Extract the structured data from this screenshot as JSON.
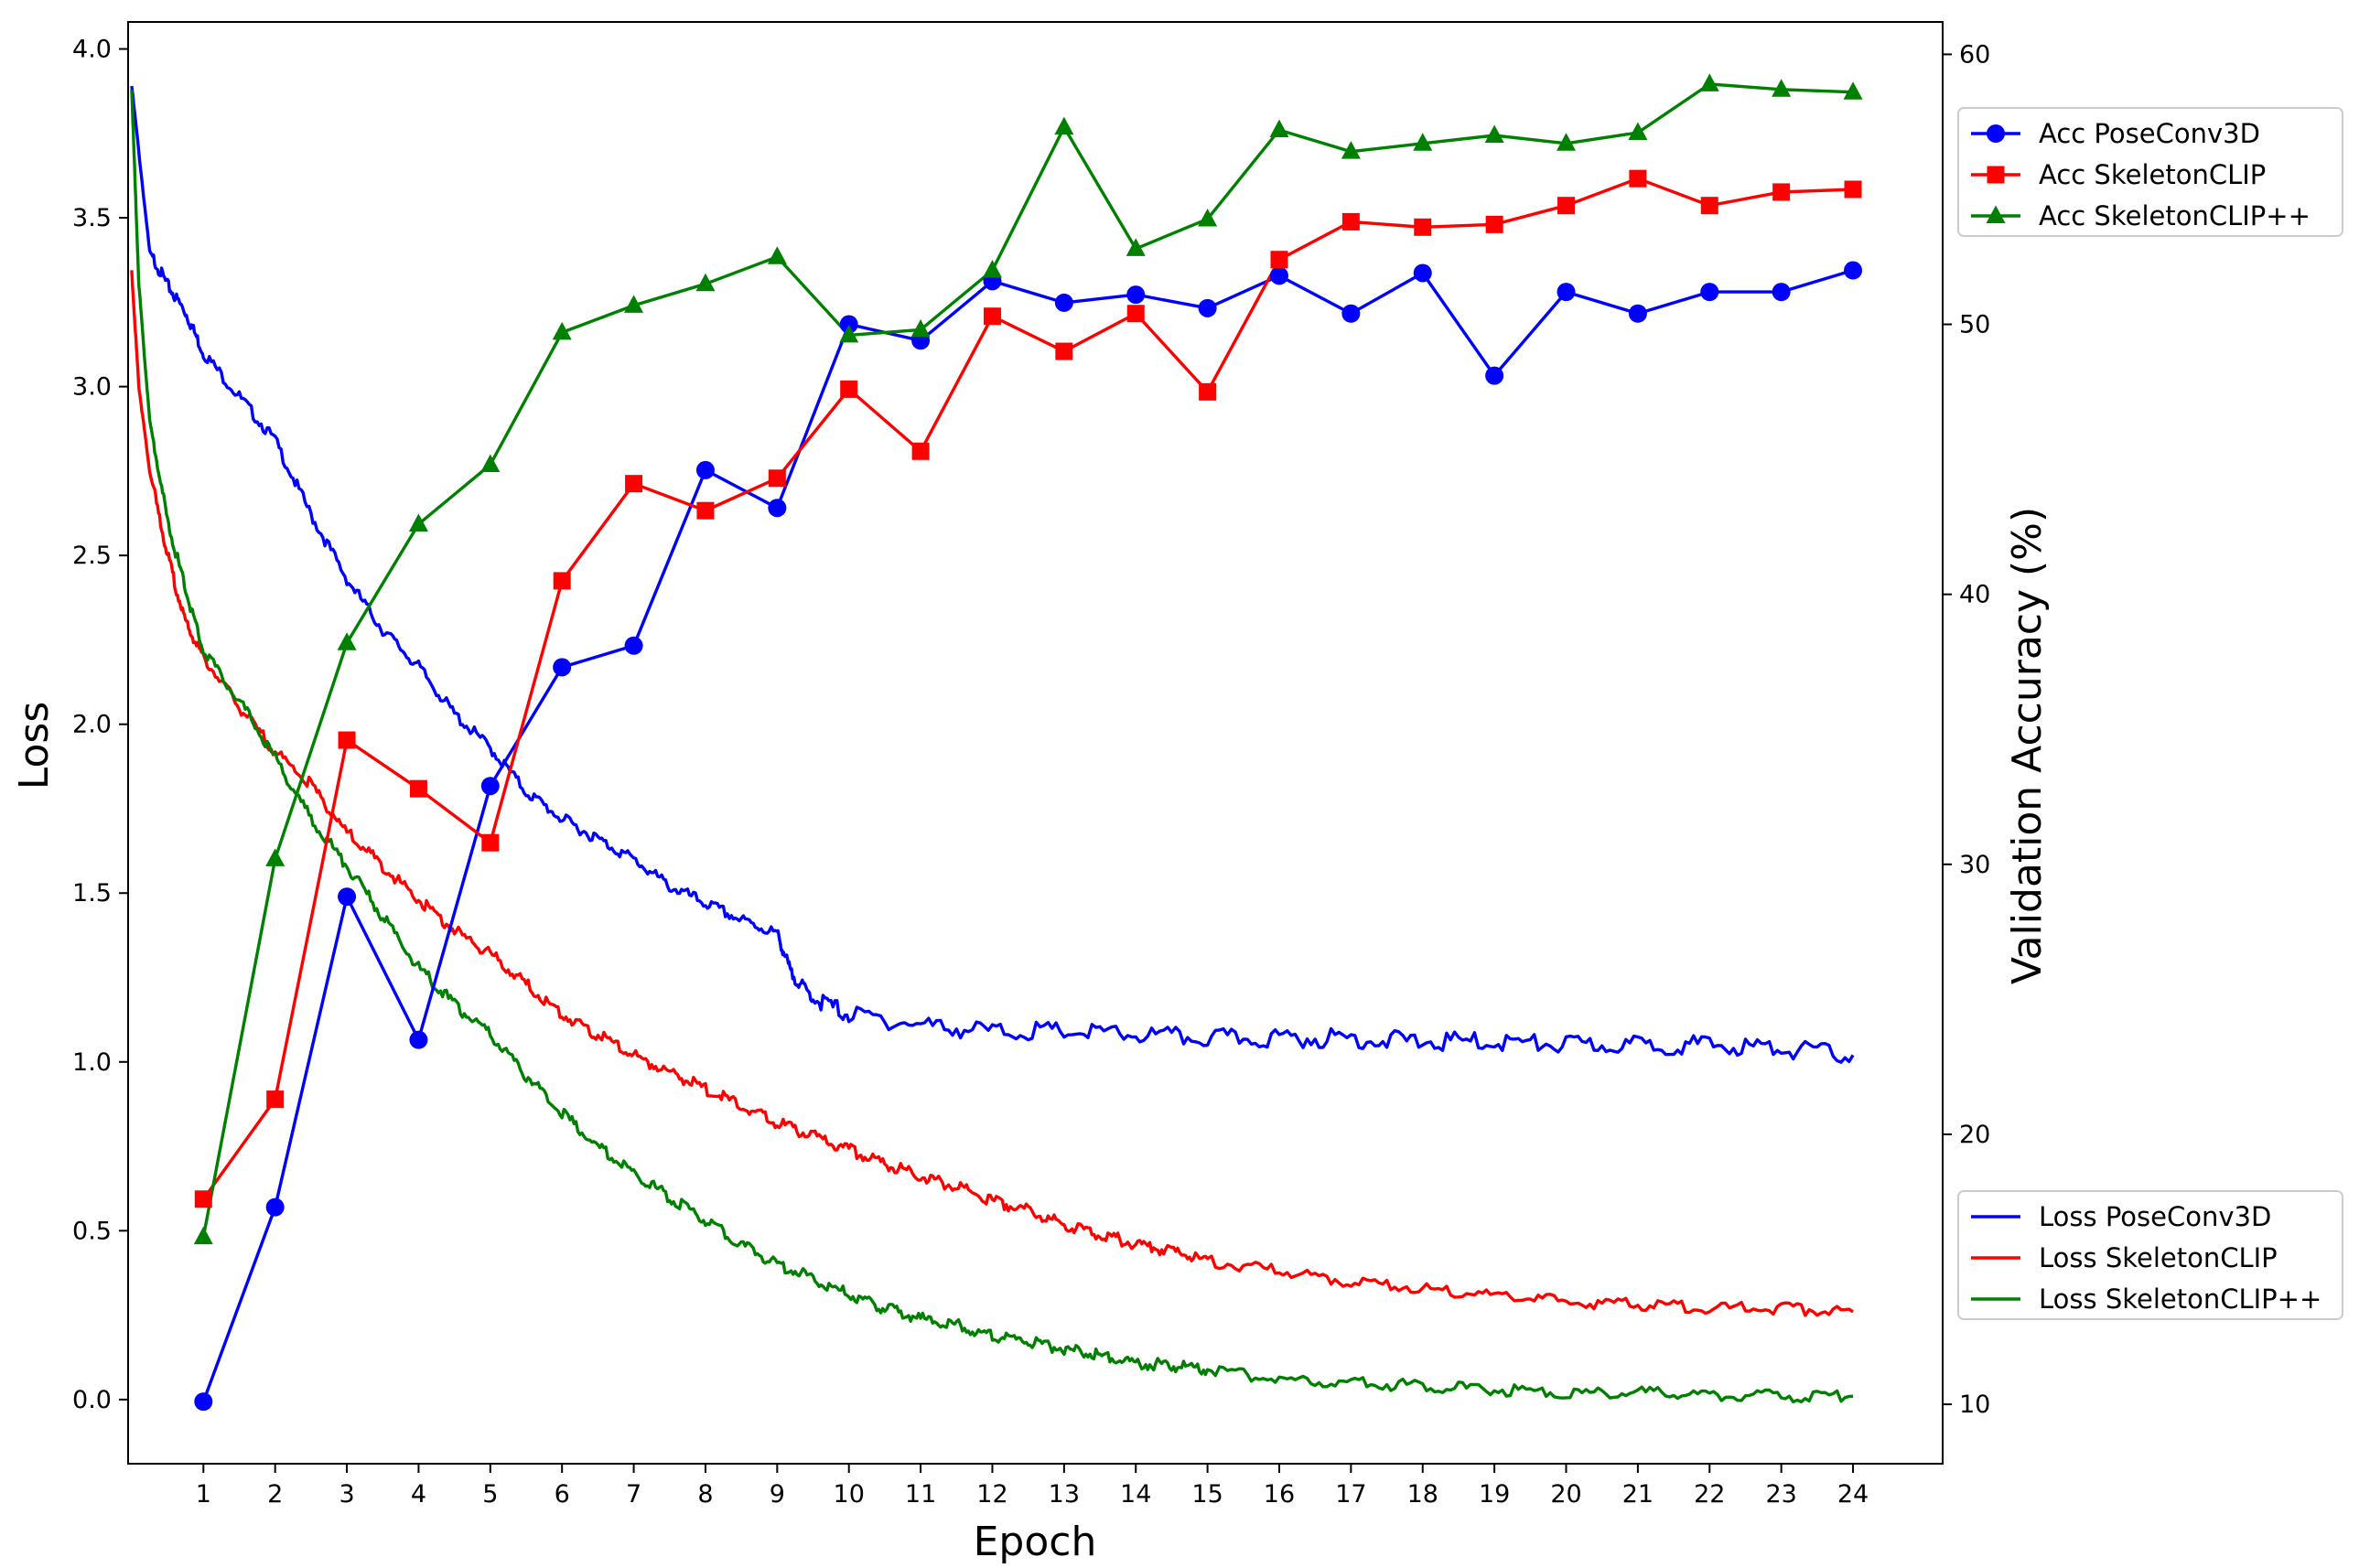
{
  "chart_data": {
    "type": "line",
    "xlabel": "Epoch",
    "ylabel_left": "Loss",
    "ylabel_right": "Validation Accuracy (%)",
    "x_ticks": [
      1,
      2,
      3,
      4,
      5,
      6,
      7,
      8,
      9,
      10,
      11,
      12,
      13,
      14,
      15,
      16,
      17,
      18,
      19,
      20,
      21,
      22,
      23,
      24
    ],
    "xlim": [
      -0.05,
      25.25
    ],
    "ylim_left": [
      -0.19,
      4.08
    ],
    "ylim_right": [
      7.8,
      61.2
    ],
    "left_ticks": [
      "0.0",
      "0.5",
      "1.0",
      "1.5",
      "2.0",
      "2.5",
      "3.0",
      "3.5",
      "4.0"
    ],
    "right_ticks": [
      "10",
      "20",
      "30",
      "40",
      "50",
      "60"
    ],
    "grid": false,
    "colors": {
      "poseconv3d": "#0000ff",
      "skeletonclip": "#ff0000",
      "skeletonclippp": "#008000"
    },
    "accuracy_series": [
      {
        "name": "Acc PoseConv3D",
        "color": "#0000ff",
        "marker": "circle",
        "x": [
          1,
          2,
          3,
          4,
          5,
          6,
          7,
          8,
          9,
          10,
          11,
          12,
          13,
          14,
          15,
          16,
          17,
          18,
          19,
          20,
          21,
          22,
          23,
          24
        ],
        "values": [
          10.1,
          17.3,
          28.8,
          23.5,
          32.9,
          37.3,
          38.1,
          44.6,
          43.2,
          50.0,
          49.4,
          51.6,
          50.8,
          51.1,
          50.6,
          51.8,
          50.4,
          51.9,
          48.1,
          51.2,
          50.4,
          51.2,
          51.2,
          52.0
        ]
      },
      {
        "name": "Acc SkeletonCLIP",
        "color": "#ff0000",
        "marker": "square",
        "x": [
          1,
          2,
          3,
          4,
          5,
          6,
          7,
          8,
          9,
          10,
          11,
          12,
          13,
          14,
          15,
          16,
          17,
          18,
          19,
          20,
          21,
          22,
          23,
          24
        ],
        "values": [
          17.6,
          21.3,
          34.6,
          32.8,
          30.8,
          40.5,
          44.1,
          43.1,
          44.3,
          47.6,
          45.3,
          50.3,
          49.0,
          50.4,
          47.5,
          52.4,
          53.8,
          53.6,
          53.7,
          54.4,
          55.4,
          54.4,
          54.9,
          55.0
        ]
      },
      {
        "name": "Acc SkeletonCLIP++",
        "color": "#008000",
        "marker": "triangle",
        "x": [
          1,
          2,
          3,
          4,
          5,
          6,
          7,
          8,
          9,
          10,
          11,
          12,
          13,
          14,
          15,
          16,
          17,
          18,
          19,
          20,
          21,
          22,
          23,
          24
        ],
        "values": [
          16.2,
          30.2,
          38.2,
          42.6,
          44.8,
          49.7,
          50.7,
          51.5,
          52.5,
          49.6,
          49.8,
          52.0,
          57.3,
          52.8,
          53.9,
          57.2,
          56.4,
          56.7,
          57.0,
          56.7,
          57.1,
          58.9,
          58.7,
          58.6
        ]
      }
    ],
    "loss_series": [
      {
        "name": "Loss PoseConv3D",
        "color": "#0000ff",
        "x": [
          0,
          0.25,
          0.5,
          0.75,
          1,
          1.5,
          2,
          2.5,
          3,
          3.5,
          4,
          4.5,
          5,
          5.5,
          6,
          6.5,
          7,
          7.5,
          8,
          8.5,
          9,
          9.2,
          9.5,
          10,
          11,
          12,
          13,
          14,
          15,
          16,
          17,
          18,
          19,
          20,
          21,
          22,
          23,
          24
        ],
        "values": [
          3.89,
          3.4,
          3.3,
          3.22,
          3.1,
          2.97,
          2.84,
          2.62,
          2.43,
          2.28,
          2.17,
          2.03,
          1.93,
          1.8,
          1.72,
          1.66,
          1.6,
          1.52,
          1.47,
          1.42,
          1.38,
          1.26,
          1.19,
          1.14,
          1.11,
          1.09,
          1.09,
          1.08,
          1.07,
          1.07,
          1.07,
          1.06,
          1.06,
          1.05,
          1.05,
          1.05,
          1.04,
          1.02
        ]
      },
      {
        "name": "Loss SkeletonCLIP",
        "color": "#ff0000",
        "x": [
          0,
          0.1,
          0.25,
          0.5,
          0.75,
          1,
          1.5,
          2,
          2.5,
          3,
          3.5,
          4,
          4.5,
          5,
          5.5,
          6,
          6.5,
          7,
          7.5,
          8,
          8.5,
          9,
          9.5,
          10,
          10.5,
          11,
          11.5,
          12,
          12.5,
          13,
          13.5,
          14,
          14.5,
          15,
          16,
          17,
          18,
          19,
          20,
          21,
          22,
          23,
          24
        ],
        "values": [
          3.34,
          3.0,
          2.75,
          2.5,
          2.3,
          2.2,
          2.05,
          1.92,
          1.82,
          1.68,
          1.58,
          1.48,
          1.39,
          1.32,
          1.23,
          1.14,
          1.08,
          1.02,
          0.97,
          0.92,
          0.87,
          0.82,
          0.78,
          0.74,
          0.7,
          0.66,
          0.63,
          0.59,
          0.56,
          0.52,
          0.49,
          0.46,
          0.44,
          0.41,
          0.38,
          0.35,
          0.33,
          0.31,
          0.29,
          0.28,
          0.27,
          0.27,
          0.26
        ]
      },
      {
        "name": "Loss SkeletonCLIP++",
        "color": "#008000",
        "x": [
          0,
          0.1,
          0.25,
          0.5,
          0.75,
          1,
          1.5,
          2,
          2.5,
          3,
          3.5,
          4,
          4.5,
          5,
          5.5,
          6,
          6.5,
          7,
          7.5,
          8,
          8.5,
          9,
          9.5,
          10,
          10.5,
          11,
          11.5,
          12,
          12.5,
          13,
          13.5,
          14,
          14.5,
          15,
          16,
          17,
          18,
          19,
          20,
          21,
          22,
          23,
          24
        ],
        "values": [
          3.88,
          3.3,
          2.9,
          2.6,
          2.4,
          2.22,
          2.07,
          1.9,
          1.72,
          1.58,
          1.43,
          1.28,
          1.17,
          1.08,
          0.96,
          0.85,
          0.75,
          0.67,
          0.6,
          0.53,
          0.46,
          0.4,
          0.36,
          0.31,
          0.27,
          0.24,
          0.22,
          0.19,
          0.17,
          0.15,
          0.13,
          0.11,
          0.1,
          0.09,
          0.06,
          0.05,
          0.04,
          0.03,
          0.02,
          0.02,
          0.015,
          0.01,
          0.01
        ]
      }
    ],
    "legends": [
      {
        "placement": "upper-right",
        "entries": [
          "Acc PoseConv3D",
          "Acc SkeletonCLIP",
          "Acc SkeletonCLIP++"
        ]
      },
      {
        "placement": "lower-right",
        "entries": [
          "Loss PoseConv3D",
          "Loss SkeletonCLIP",
          "Loss SkeletonCLIP++"
        ]
      }
    ]
  }
}
